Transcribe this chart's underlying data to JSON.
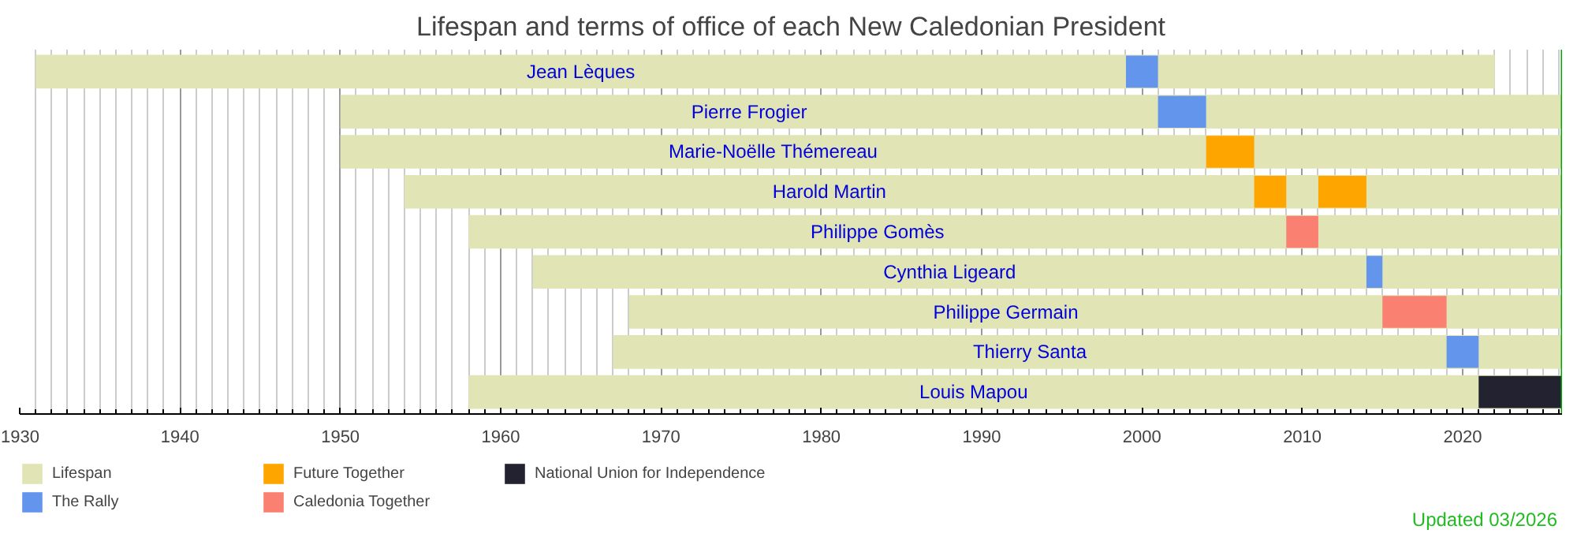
{
  "chart_data": {
    "type": "bar",
    "orientation": "horizontal",
    "title": "Lifespan and terms of office of each New Caledonian President",
    "categories": [
      "Jean Lèques",
      "Pierre Frogier",
      "Marie-Noëlle Thémereau",
      "Harold Martin",
      "Philippe Gomès",
      "Cynthia Ligeard",
      "Philippe Germain",
      "Thierry Santa",
      "Louis Mapou"
    ],
    "series": [
      {
        "name": "Lifespan",
        "color": "#e1e4b5",
        "base": [
          1931,
          1950,
          1950,
          1954,
          1958,
          1962,
          1968,
          1967,
          1958
        ],
        "values": [
          91,
          76.2,
          76.2,
          72.2,
          68.2,
          64.2,
          58.2,
          59.2,
          68.2
        ]
      },
      {
        "name": "The Rally",
        "color": "#6495ed",
        "base": [
          1999,
          2001,
          null,
          null,
          null,
          2014,
          null,
          2019,
          null
        ],
        "values": [
          2,
          3,
          null,
          null,
          null,
          1,
          null,
          2,
          null
        ]
      },
      {
        "name": "Future Together",
        "color": "#ffa500",
        "base": [
          null,
          null,
          2004,
          2007,
          null,
          null,
          null,
          null,
          null
        ],
        "values": [
          null,
          null,
          3,
          2,
          null,
          null,
          null,
          null,
          null
        ]
      },
      {
        "color": "#ffa500",
        "base": [
          null,
          null,
          null,
          2011,
          null,
          null,
          null,
          null,
          null
        ],
        "values": [
          null,
          null,
          null,
          3,
          null,
          null,
          null,
          null,
          null
        ]
      },
      {
        "name": "Caledonia Together",
        "color": "#fa8072",
        "base": [
          null,
          null,
          null,
          null,
          2009,
          null,
          2015,
          null,
          null
        ],
        "values": [
          null,
          null,
          null,
          null,
          2,
          null,
          4,
          null,
          null
        ]
      },
      {
        "name": "National Union for Independence",
        "color": "#222230",
        "base": [
          null,
          null,
          null,
          null,
          null,
          null,
          null,
          null,
          2021
        ],
        "values": [
          null,
          null,
          null,
          null,
          null,
          null,
          null,
          null,
          5.2
        ]
      }
    ],
    "xlim": [
      1930,
      2026.2
    ],
    "xticks": [
      1930,
      1940,
      1950,
      1960,
      1970,
      1980,
      1990,
      2000,
      2010,
      2020
    ],
    "ref_lines": [
      {
        "axis": "x",
        "value": 2026.2,
        "color": "#00aa00"
      }
    ],
    "annotations": [
      "Updated 03/2026"
    ],
    "grid": "x",
    "legend": "bottom left",
    "tick_labels": "x"
  }
}
